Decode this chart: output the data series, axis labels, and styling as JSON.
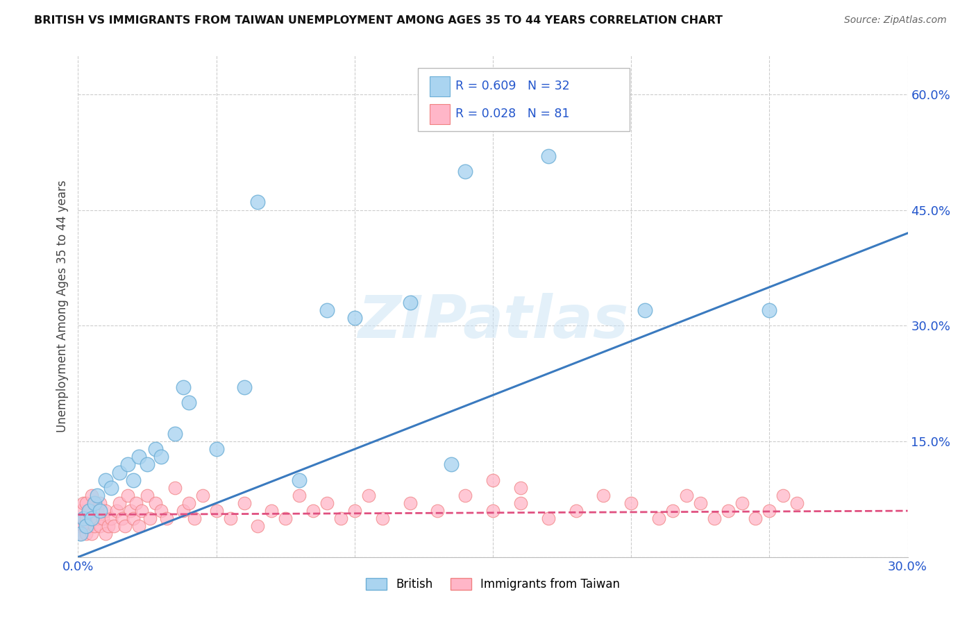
{
  "title": "BRITISH VS IMMIGRANTS FROM TAIWAN UNEMPLOYMENT AMONG AGES 35 TO 44 YEARS CORRELATION CHART",
  "source": "Source: ZipAtlas.com",
  "ylabel": "Unemployment Among Ages 35 to 44 years",
  "xlim": [
    0.0,
    0.3
  ],
  "ylim": [
    0.0,
    0.65
  ],
  "x_ticks": [
    0.0,
    0.05,
    0.1,
    0.15,
    0.2,
    0.25,
    0.3
  ],
  "x_tick_labels": [
    "0.0%",
    "",
    "",
    "",
    "",
    "",
    "30.0%"
  ],
  "y_ticks": [
    0.0,
    0.15,
    0.3,
    0.45,
    0.6
  ],
  "y_tick_labels": [
    "",
    "15.0%",
    "30.0%",
    "45.0%",
    "60.0%"
  ],
  "british_color": "#aad4f0",
  "british_edge": "#6baed6",
  "taiwan_color": "#ffb6c8",
  "taiwan_edge": "#f08080",
  "british_R": 0.609,
  "british_N": 32,
  "taiwan_R": 0.028,
  "taiwan_N": 81,
  "legend_text_color": "#2255cc",
  "line_blue": "#3a7abf",
  "line_pink": "#e05080",
  "watermark": "ZIPatlas",
  "background_color": "#ffffff",
  "grid_color": "#cccccc",
  "british_scatter_x": [
    0.001,
    0.002,
    0.003,
    0.004,
    0.005,
    0.006,
    0.007,
    0.008,
    0.01,
    0.012,
    0.015,
    0.018,
    0.02,
    0.022,
    0.025,
    0.028,
    0.03,
    0.035,
    0.038,
    0.04,
    0.05,
    0.06,
    0.065,
    0.08,
    0.09,
    0.1,
    0.12,
    0.14,
    0.17,
    0.205,
    0.25,
    0.135
  ],
  "british_scatter_y": [
    0.03,
    0.05,
    0.04,
    0.06,
    0.05,
    0.07,
    0.08,
    0.06,
    0.1,
    0.09,
    0.11,
    0.12,
    0.1,
    0.13,
    0.12,
    0.14,
    0.13,
    0.16,
    0.22,
    0.2,
    0.14,
    0.22,
    0.46,
    0.1,
    0.32,
    0.31,
    0.33,
    0.5,
    0.52,
    0.32,
    0.32,
    0.12
  ],
  "taiwan_scatter_x": [
    0.0,
    0.001,
    0.001,
    0.002,
    0.002,
    0.002,
    0.003,
    0.003,
    0.003,
    0.004,
    0.004,
    0.005,
    0.005,
    0.005,
    0.006,
    0.006,
    0.007,
    0.007,
    0.008,
    0.008,
    0.009,
    0.01,
    0.01,
    0.011,
    0.012,
    0.013,
    0.014,
    0.015,
    0.016,
    0.017,
    0.018,
    0.019,
    0.02,
    0.021,
    0.022,
    0.023,
    0.025,
    0.026,
    0.028,
    0.03,
    0.032,
    0.035,
    0.038,
    0.04,
    0.042,
    0.045,
    0.05,
    0.055,
    0.06,
    0.065,
    0.07,
    0.075,
    0.08,
    0.085,
    0.09,
    0.095,
    0.1,
    0.105,
    0.11,
    0.12,
    0.13,
    0.14,
    0.15,
    0.16,
    0.17,
    0.18,
    0.19,
    0.2,
    0.21,
    0.215,
    0.22,
    0.225,
    0.23,
    0.235,
    0.24,
    0.245,
    0.25,
    0.255,
    0.26,
    0.15,
    0.16
  ],
  "taiwan_scatter_y": [
    0.04,
    0.03,
    0.06,
    0.04,
    0.05,
    0.07,
    0.03,
    0.05,
    0.07,
    0.04,
    0.06,
    0.03,
    0.05,
    0.08,
    0.04,
    0.07,
    0.05,
    0.06,
    0.04,
    0.07,
    0.05,
    0.03,
    0.06,
    0.04,
    0.05,
    0.04,
    0.06,
    0.07,
    0.05,
    0.04,
    0.08,
    0.06,
    0.05,
    0.07,
    0.04,
    0.06,
    0.08,
    0.05,
    0.07,
    0.06,
    0.05,
    0.09,
    0.06,
    0.07,
    0.05,
    0.08,
    0.06,
    0.05,
    0.07,
    0.04,
    0.06,
    0.05,
    0.08,
    0.06,
    0.07,
    0.05,
    0.06,
    0.08,
    0.05,
    0.07,
    0.06,
    0.08,
    0.06,
    0.07,
    0.05,
    0.06,
    0.08,
    0.07,
    0.05,
    0.06,
    0.08,
    0.07,
    0.05,
    0.06,
    0.07,
    0.05,
    0.06,
    0.08,
    0.07,
    0.1,
    0.09
  ],
  "british_line_x0": 0.0,
  "british_line_y0": 0.0,
  "british_line_x1": 0.3,
  "british_line_y1": 0.42,
  "taiwan_line_x0": 0.0,
  "taiwan_line_y0": 0.055,
  "taiwan_line_x1": 0.3,
  "taiwan_line_y1": 0.06
}
